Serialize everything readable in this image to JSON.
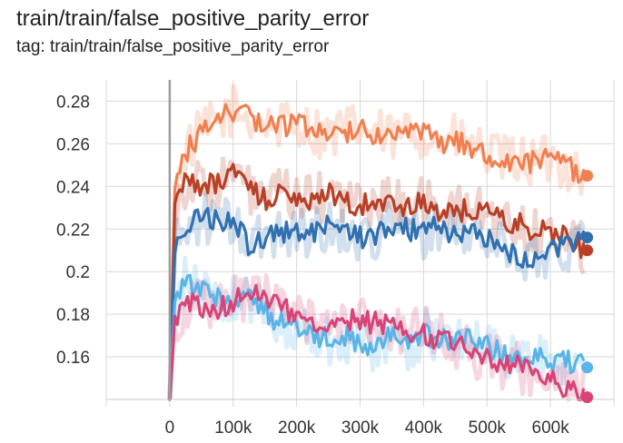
{
  "header": {
    "title": "train/train/false_positive_parity_error",
    "subtitle": "tag: train/train/false_positive_parity_error"
  },
  "chart_data": {
    "type": "line",
    "title": "train/train/false_positive_parity_error",
    "subtitle": "tag: train/train/false_positive_parity_error",
    "xlabel": "",
    "ylabel": "",
    "xlim": [
      -100000,
      700000
    ],
    "ylim": [
      0.14,
      0.29
    ],
    "x_ticks": [
      0,
      100000,
      200000,
      300000,
      400000,
      500000,
      600000
    ],
    "x_tick_labels": [
      "0",
      "100k",
      "200k",
      "300k",
      "400k",
      "500k",
      "600k"
    ],
    "y_ticks": [
      0.16,
      0.18,
      0.2,
      0.22,
      0.24,
      0.26,
      0.28
    ],
    "y_tick_labels": [
      "0.16",
      "0.18",
      "0.2",
      "0.22",
      "0.24",
      "0.26",
      "0.28"
    ],
    "grid": true,
    "legend": "none",
    "x": [
      0,
      8000,
      25000,
      50000,
      75000,
      100000,
      125000,
      150000,
      175000,
      200000,
      225000,
      250000,
      275000,
      300000,
      325000,
      350000,
      375000,
      400000,
      425000,
      450000,
      475000,
      500000,
      525000,
      550000,
      575000,
      600000,
      625000,
      655000
    ],
    "series": [
      {
        "color": "#f08050",
        "values": [
          0.14,
          0.236,
          0.256,
          0.265,
          0.27,
          0.276,
          0.272,
          0.27,
          0.268,
          0.271,
          0.266,
          0.264,
          0.266,
          0.267,
          0.265,
          0.262,
          0.266,
          0.265,
          0.26,
          0.262,
          0.259,
          0.255,
          0.252,
          0.253,
          0.251,
          0.253,
          0.25,
          0.245
        ]
      },
      {
        "color": "#b84028",
        "values": [
          0.14,
          0.228,
          0.242,
          0.24,
          0.241,
          0.246,
          0.238,
          0.234,
          0.236,
          0.235,
          0.233,
          0.236,
          0.234,
          0.231,
          0.232,
          0.233,
          0.231,
          0.232,
          0.229,
          0.228,
          0.23,
          0.227,
          0.224,
          0.222,
          0.219,
          0.218,
          0.216,
          0.21
        ]
      },
      {
        "color": "#3070b0",
        "values": [
          0.14,
          0.21,
          0.221,
          0.225,
          0.224,
          0.222,
          0.213,
          0.216,
          0.219,
          0.22,
          0.218,
          0.221,
          0.219,
          0.216,
          0.218,
          0.222,
          0.22,
          0.218,
          0.222,
          0.217,
          0.218,
          0.215,
          0.211,
          0.207,
          0.206,
          0.209,
          0.212,
          0.216
        ]
      },
      {
        "color": "#5ab4e6",
        "values": [
          0.14,
          0.186,
          0.195,
          0.192,
          0.188,
          0.186,
          0.187,
          0.181,
          0.176,
          0.174,
          0.17,
          0.168,
          0.17,
          0.166,
          0.165,
          0.17,
          0.164,
          0.171,
          0.168,
          0.167,
          0.169,
          0.166,
          0.16,
          0.158,
          0.16,
          0.156,
          0.158,
          0.155
        ]
      },
      {
        "color": "#d84478",
        "values": [
          0.14,
          0.176,
          0.186,
          0.184,
          0.183,
          0.185,
          0.19,
          0.188,
          0.184,
          0.178,
          0.176,
          0.175,
          0.178,
          0.177,
          0.176,
          0.174,
          0.17,
          0.172,
          0.168,
          0.166,
          0.162,
          0.159,
          0.157,
          0.155,
          0.153,
          0.149,
          0.145,
          0.141
        ]
      }
    ]
  }
}
